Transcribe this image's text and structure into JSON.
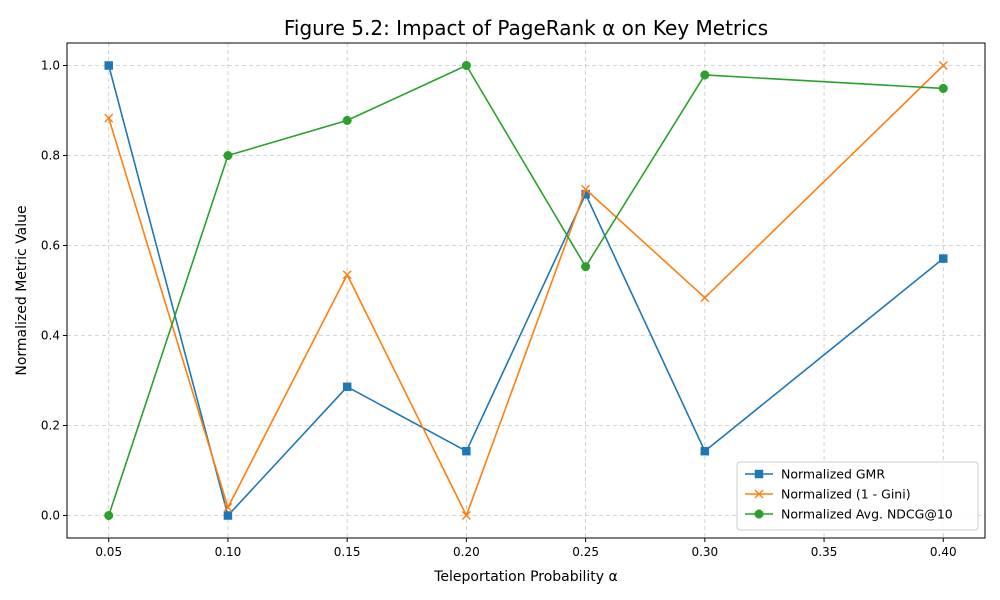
{
  "chart_data": {
    "type": "line",
    "title": "Figure 5.2: Impact of PageRank α on Key Metrics",
    "xlabel": "Teleportation Probability α",
    "ylabel": "Normalized Metric Value",
    "x": [
      0.05,
      0.1,
      0.15,
      0.2,
      0.25,
      0.3,
      0.4
    ],
    "x_ticks": [
      "0.05",
      "0.10",
      "0.15",
      "0.20",
      "0.25",
      "0.30",
      "0.35",
      "0.40"
    ],
    "y_ticks": [
      "0.0",
      "0.2",
      "0.4",
      "0.6",
      "0.8",
      "1.0"
    ],
    "xlim": [
      0.0325,
      0.4175
    ],
    "ylim": [
      -0.05,
      1.05
    ],
    "grid": true,
    "legend_position": "lower-right",
    "series": [
      {
        "name": "Normalized GMR",
        "color": "#1f77b4",
        "marker": "square",
        "values": [
          1.0,
          0.0,
          0.286,
          0.143,
          0.714,
          0.143,
          0.571
        ]
      },
      {
        "name": "Normalized (1 - Gini)",
        "color": "#ff7f0e",
        "marker": "x",
        "values": [
          0.883,
          0.018,
          0.535,
          0.0,
          0.725,
          0.484,
          1.0
        ]
      },
      {
        "name": "Normalized Avg. NDCG@10",
        "color": "#2ca02c",
        "marker": "circle",
        "values": [
          0.0,
          0.8,
          0.878,
          1.0,
          0.553,
          0.979,
          0.949
        ]
      }
    ]
  }
}
